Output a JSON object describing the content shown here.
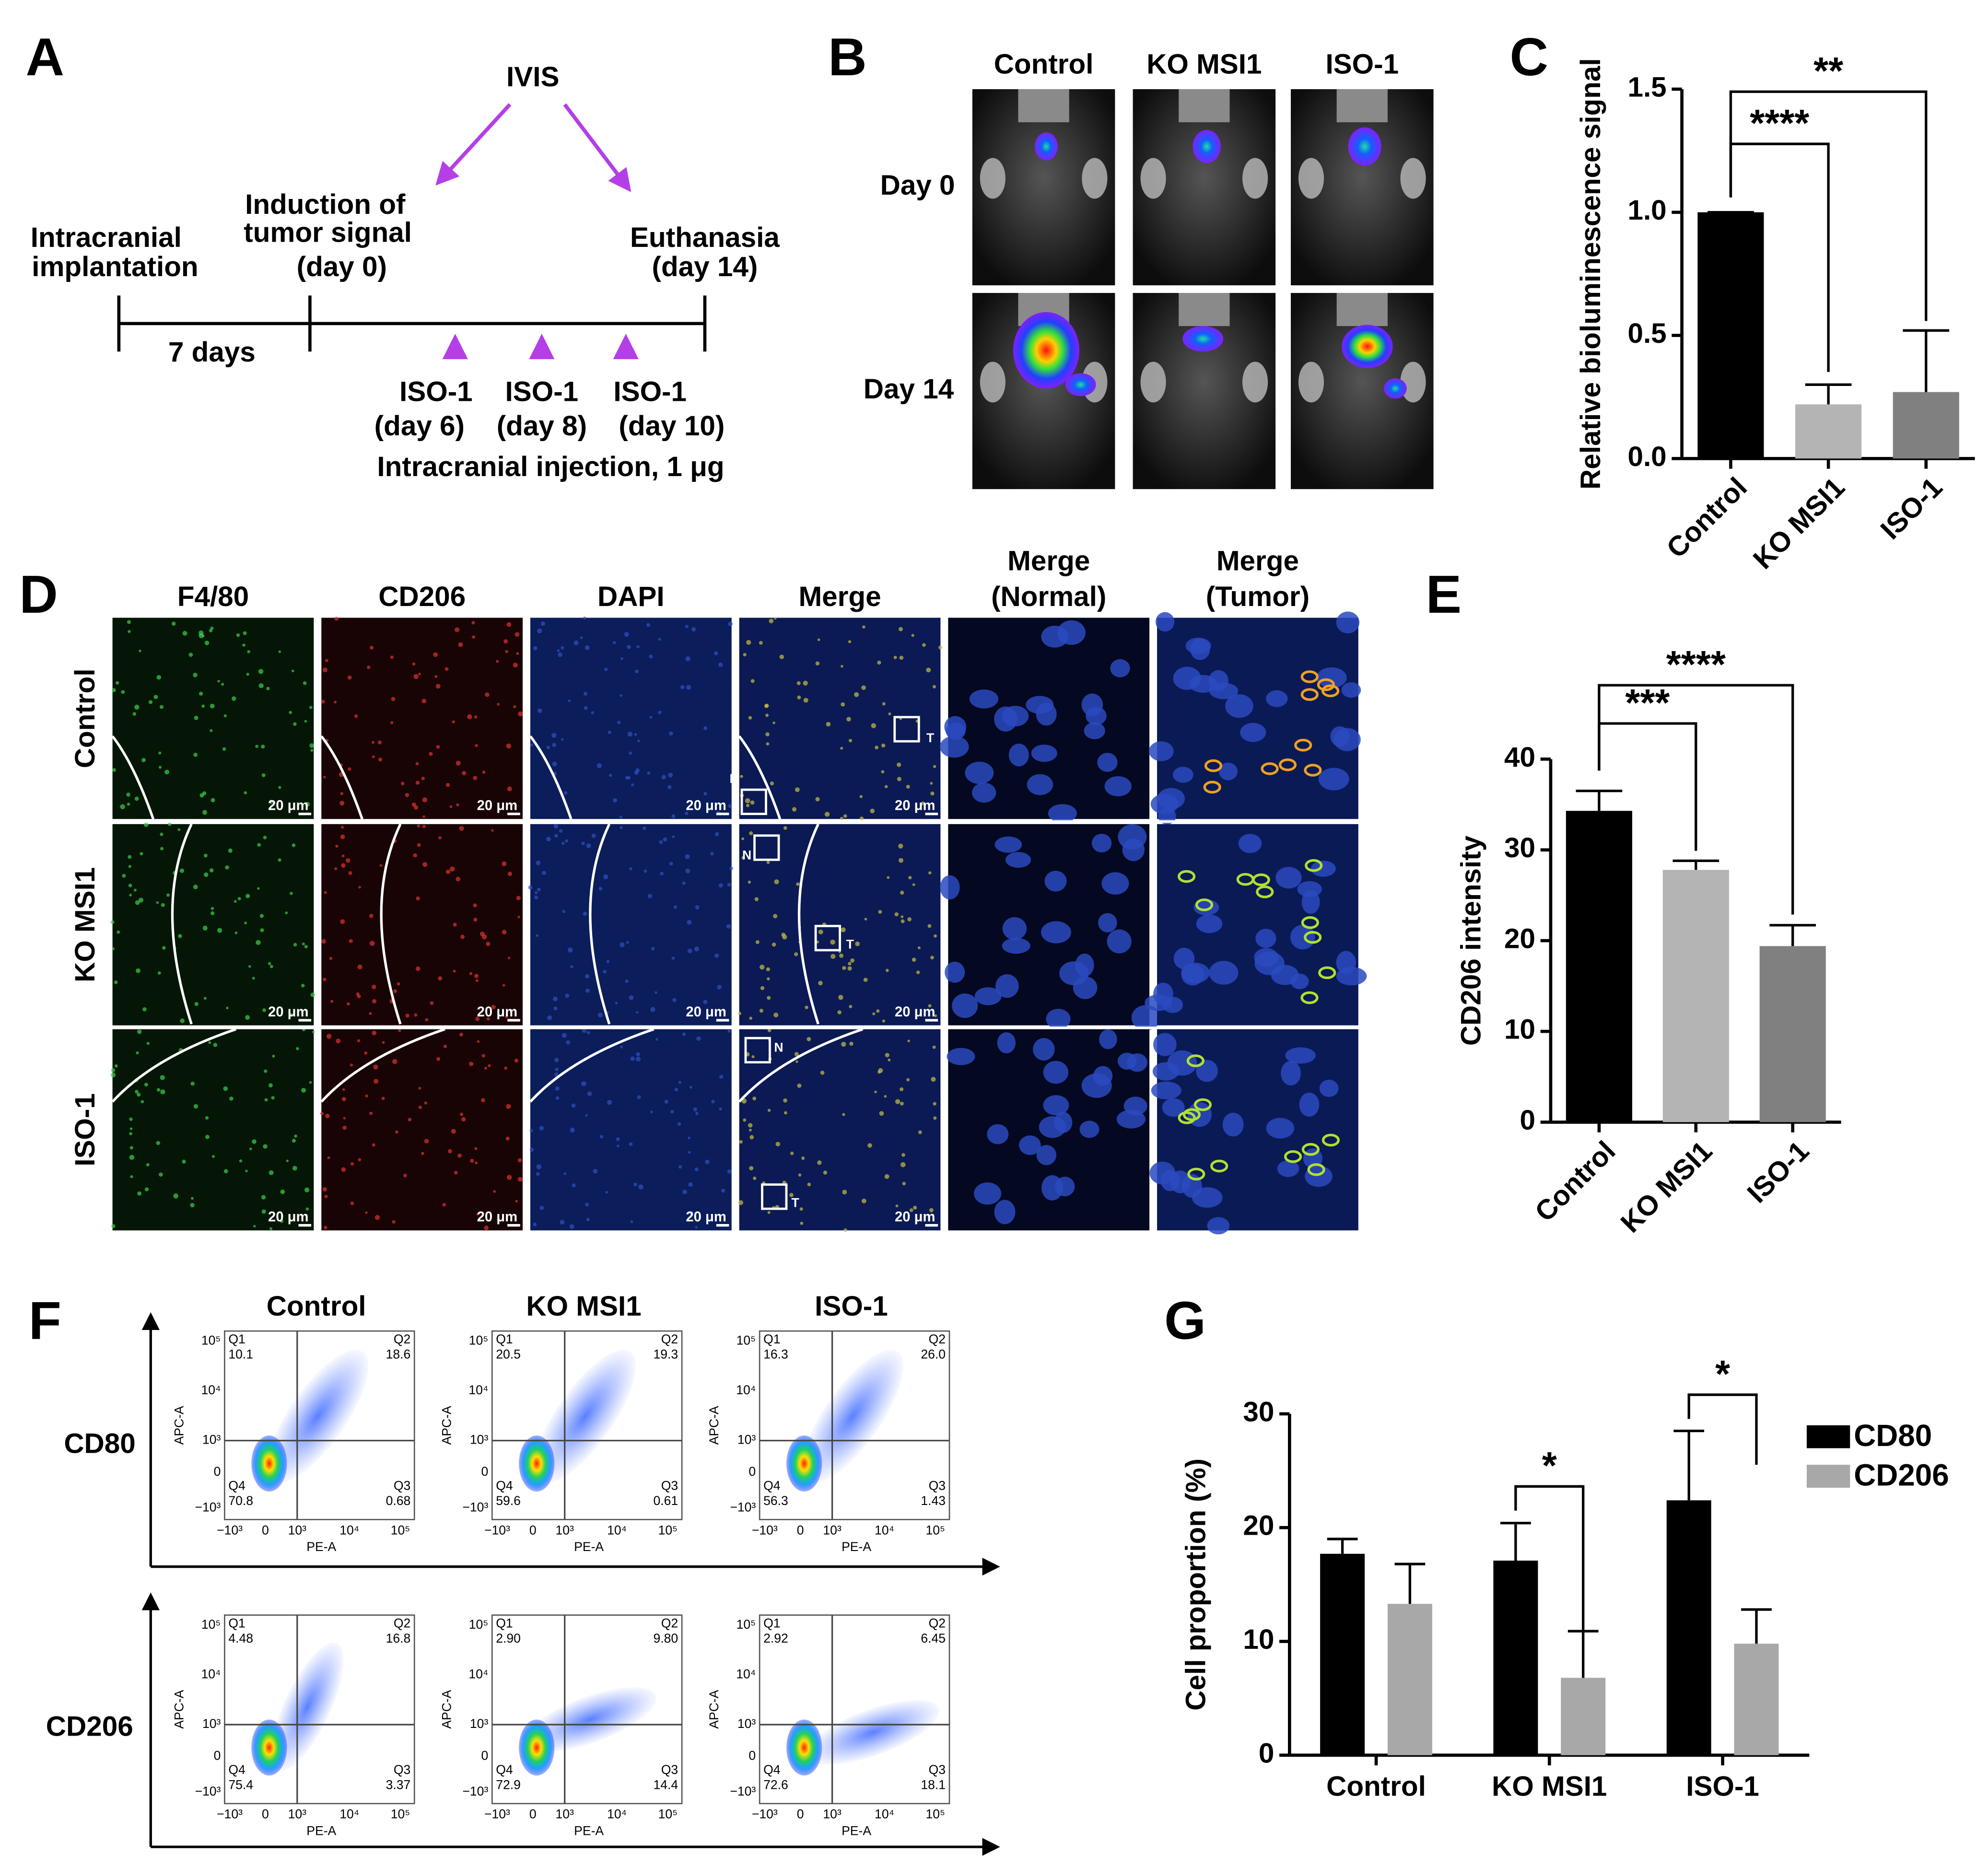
{
  "panels": [
    "A",
    "B",
    "C",
    "D",
    "E",
    "F",
    "G"
  ],
  "timeline": {
    "ivis": "IVIS",
    "implantation": [
      "Intracranial",
      "implantation"
    ],
    "induction": [
      "Induction of",
      "tumor signal",
      "(day 0)"
    ],
    "euthanasia": [
      "Euthanasia",
      "(day 14)"
    ],
    "interval": "7 days",
    "treatments": [
      [
        "ISO-1",
        "(day 6)"
      ],
      [
        "ISO-1",
        "(day 8)"
      ],
      [
        "ISO-1",
        "(day 10)"
      ]
    ],
    "injection": "Intracranial injection, 1 μg"
  },
  "imaging": {
    "columns": [
      "Control",
      "KO MSI1",
      "ISO-1"
    ],
    "rows": [
      "Day 0",
      "Day 14"
    ]
  },
  "histology": {
    "columns": [
      [
        "F4/80"
      ],
      [
        "CD206"
      ],
      [
        "DAPI"
      ],
      [
        "Merge"
      ],
      [
        "Merge",
        "(Normal)"
      ],
      [
        "Merge",
        "(Tumor)"
      ]
    ],
    "rows": [
      "Control",
      "KO MSI1",
      "ISO-1"
    ],
    "scale_bar": "20 μm",
    "roi_labels": [
      "N",
      "T"
    ]
  },
  "flow": {
    "columns": [
      "Control",
      "KO MSI1",
      "ISO-1"
    ],
    "rows": [
      "CD80",
      "CD206"
    ],
    "quadrant_labels": [
      "Q1",
      "Q2",
      "Q3",
      "Q4"
    ],
    "x_label": "PE-A",
    "y_label": "APC-A",
    "x_ticks": [
      "−10³",
      "0",
      "10³",
      "10⁴",
      "10⁵"
    ],
    "y_ticks": [
      "10⁵",
      "10⁴",
      "10³",
      "0",
      "−10³"
    ],
    "plots": [
      [
        [
          "10.1",
          "18.6",
          "0.68",
          "70.8"
        ],
        [
          "20.5",
          "19.3",
          "0.61",
          "59.6"
        ],
        [
          "16.3",
          "26.0",
          "1.43",
          "56.3"
        ]
      ],
      [
        [
          "4.48",
          "16.8",
          "3.37",
          "75.4"
        ],
        [
          "2.90",
          "9.80",
          "14.4",
          "72.9"
        ],
        [
          "2.92",
          "6.45",
          "18.1",
          "72.6"
        ]
      ]
    ]
  },
  "chart_data": [
    {
      "type": "bar",
      "y_label": "Relative bioluminescence signal",
      "categories": [
        "Control",
        "KO MSI1",
        "ISO-1"
      ],
      "values": [
        1.0,
        0.22,
        0.27
      ],
      "errors": [
        0,
        0.08,
        0.25
      ],
      "colors": [
        "#000000",
        "#b4b4b4",
        "#808080"
      ],
      "ylim": [
        0,
        1.5
      ],
      "yticks": [
        {
          "value": 0,
          "label": "0.0"
        },
        {
          "value": 0.5,
          "label": "0.5"
        },
        {
          "value": 1,
          "label": "1.0"
        },
        {
          "value": 1.5,
          "label": "1.5"
        }
      ],
      "annotations": [
        "****",
        "**"
      ]
    },
    {
      "type": "bar",
      "y_label": "CD206 intensity",
      "categories": [
        "Control",
        "KO MSI1",
        "ISO-1"
      ],
      "values": [
        34.3,
        27.8,
        19.4
      ],
      "errors": [
        2.2,
        1.0,
        2.3
      ],
      "colors": [
        "#000000",
        "#b4b4b4",
        "#808080"
      ],
      "ylim": [
        0,
        40
      ],
      "yticks": [
        0,
        10,
        20,
        30,
        40
      ],
      "annotations": [
        "***",
        "****"
      ]
    },
    {
      "type": "grouped-bar",
      "y_label": "Cell proportion (%)",
      "categories": [
        "Control",
        "KO MSI1",
        "ISO-1"
      ],
      "series": [
        {
          "name": "CD80",
          "color": "#000000",
          "values": [
            17.7,
            17.1,
            22.4
          ],
          "errors": [
            1.3,
            3.3,
            6.1
          ]
        },
        {
          "name": "CD206",
          "color": "#a8a8a8",
          "values": [
            13.3,
            6.8,
            9.8
          ],
          "errors": [
            3.5,
            4.1,
            3.0
          ]
        }
      ],
      "ylim": [
        0,
        30
      ],
      "yticks": [
        0,
        10,
        20,
        30
      ],
      "annotations": [
        "*",
        "*"
      ]
    }
  ]
}
